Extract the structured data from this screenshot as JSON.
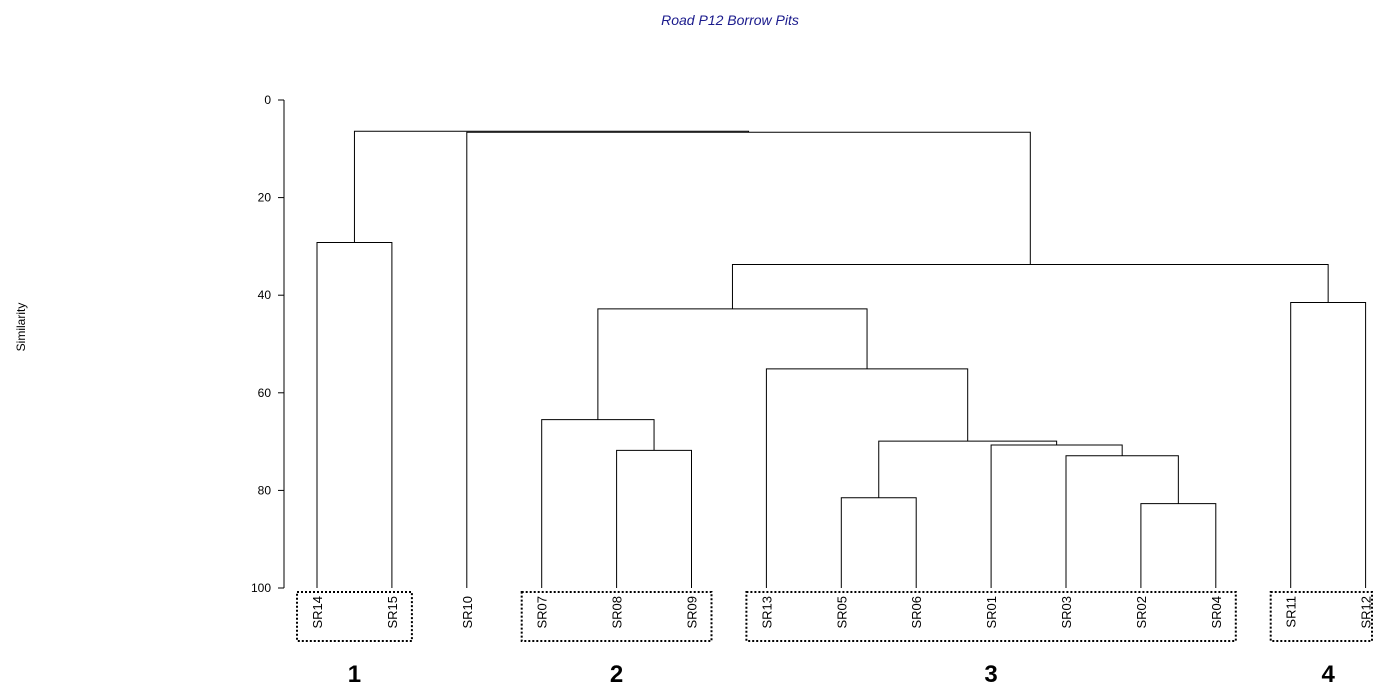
{
  "chart_data": {
    "type": "dendrogram",
    "title": "Road P12 Borrow Pits",
    "ylabel": "Similarity",
    "ylim": [
      0,
      100
    ],
    "yticks": [
      0,
      20,
      40,
      60,
      80,
      100
    ],
    "leaves": [
      "SR14",
      "SR15",
      "SR10",
      "SR07",
      "SR08",
      "SR09",
      "SR13",
      "SR05",
      "SR06",
      "SR01",
      "SR03",
      "SR02",
      "SR04",
      "SR11",
      "SR12"
    ],
    "merges": [
      {
        "id": "n1",
        "children": [
          "SR14",
          "SR15"
        ],
        "similarity": 29.2
      },
      {
        "id": "n2",
        "children": [
          "SR08",
          "SR09"
        ],
        "similarity": 71.8
      },
      {
        "id": "n3",
        "children": [
          "SR07",
          "n2"
        ],
        "similarity": 65.5
      },
      {
        "id": "n4",
        "children": [
          "SR05",
          "SR06"
        ],
        "similarity": 81.5
      },
      {
        "id": "n5",
        "children": [
          "SR02",
          "SR04"
        ],
        "similarity": 82.7
      },
      {
        "id": "n6",
        "children": [
          "SR03",
          "n5"
        ],
        "similarity": 72.9
      },
      {
        "id": "n7",
        "children": [
          "SR01",
          "n6"
        ],
        "similarity": 70.7
      },
      {
        "id": "n8",
        "children": [
          "n4",
          "n7"
        ],
        "similarity": 69.9
      },
      {
        "id": "n9",
        "children": [
          "SR13",
          "n8"
        ],
        "similarity": 55.1
      },
      {
        "id": "n10",
        "children": [
          "n3",
          "n9"
        ],
        "similarity": 42.8
      },
      {
        "id": "n11",
        "children": [
          "SR11",
          "SR12"
        ],
        "similarity": 41.5
      },
      {
        "id": "n12",
        "children": [
          "n10",
          "n11"
        ],
        "similarity": 33.7
      },
      {
        "id": "n13",
        "children": [
          "SR10",
          "n12"
        ],
        "similarity": 6.6
      },
      {
        "id": "n14",
        "children": [
          "n1",
          "n13"
        ],
        "similarity": 6.4
      }
    ],
    "groups": [
      {
        "label": "1",
        "leaves": [
          "SR14",
          "SR15"
        ]
      },
      {
        "label": "2",
        "leaves": [
          "SR07",
          "SR08",
          "SR09"
        ]
      },
      {
        "label": "3",
        "leaves": [
          "SR13",
          "SR05",
          "SR06",
          "SR01",
          "SR03",
          "SR02",
          "SR04"
        ]
      },
      {
        "label": "4",
        "leaves": [
          "SR11",
          "SR12"
        ]
      }
    ],
    "colors": {
      "title": "#1a1a8c",
      "lines": "#000000",
      "text": "#000000"
    },
    "grid": false
  }
}
